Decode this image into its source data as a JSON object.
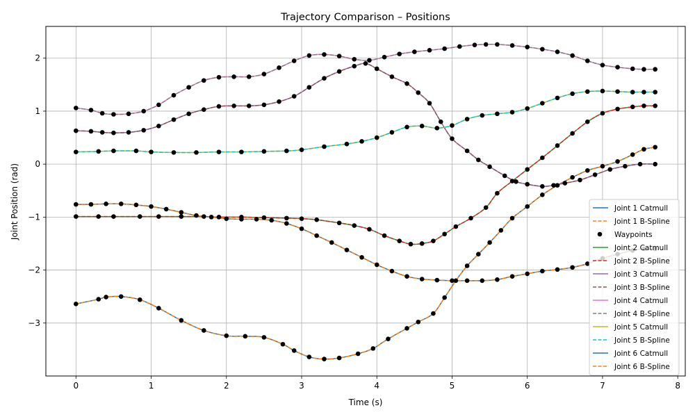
{
  "chart_data": {
    "type": "line",
    "title": "Trajectory Comparison – Positions",
    "xlabel": "Time (s)",
    "ylabel": "Joint Position (rad)",
    "xlim": [
      -0.4,
      8.1
    ],
    "ylim": [
      -4.0,
      2.6
    ],
    "xticks": [
      0,
      1,
      2,
      3,
      4,
      5,
      6,
      7,
      8
    ],
    "yticks": [
      -3,
      -2,
      -1,
      0,
      1,
      2
    ],
    "grid": true,
    "legend_position": "lower-right",
    "colors": {
      "Joint 1 Catmull": "#1f77b4",
      "Joint 1 B-Spline": "#ff7f0e",
      "Waypoints": "#000000",
      "Joint 2 Catmull": "#2ca02c",
      "Joint 2 B-Spline": "#d62728",
      "Joint 3 Catmull": "#9467bd",
      "Joint 3 B-Spline": "#8c564b",
      "Joint 4 Catmull": "#e377c2",
      "Joint 4 B-Spline": "#7f7f7f",
      "Joint 5 Catmull": "#bcbd22",
      "Joint 5 B-Spline": "#17becf",
      "Joint 6 Catmull": "#1f77b4",
      "Joint 6 B-Spline": "#ff7f0e"
    },
    "legend": [
      {
        "label": "Joint 1 Catmull",
        "style": "solid",
        "color": "#1f77b4"
      },
      {
        "label": "Joint 1 B-Spline",
        "style": "dashed",
        "color": "#ff7f0e"
      },
      {
        "label": "Waypoints",
        "style": "marker",
        "color": "#000000"
      },
      {
        "label": "Joint 2 Catmull",
        "style": "solid",
        "color": "#2ca02c"
      },
      {
        "label": "Joint 2 B-Spline",
        "style": "dashed",
        "color": "#d62728"
      },
      {
        "label": "Joint 3 Catmull",
        "style": "solid",
        "color": "#9467bd"
      },
      {
        "label": "Joint 3 B-Spline",
        "style": "dashed",
        "color": "#8c564b"
      },
      {
        "label": "Joint 4 Catmull",
        "style": "solid",
        "color": "#e377c2"
      },
      {
        "label": "Joint 4 B-Spline",
        "style": "dashed",
        "color": "#7f7f7f"
      },
      {
        "label": "Joint 5 Catmull",
        "style": "solid",
        "color": "#bcbd22"
      },
      {
        "label": "Joint 5 B-Spline",
        "style": "dashed",
        "color": "#17becf"
      },
      {
        "label": "Joint 6 Catmull",
        "style": "solid",
        "color": "#1f77b4"
      },
      {
        "label": "Joint 6 B-Spline",
        "style": "dashed",
        "color": "#ff7f0e"
      }
    ],
    "series": [
      {
        "joint": 1,
        "catmull_color": "#1f77b4",
        "bspline_color": "#ff7f0e",
        "points": [
          [
            0,
            -2.64
          ],
          [
            0.3,
            -2.55
          ],
          [
            0.4,
            -2.51
          ],
          [
            0.6,
            -2.5
          ],
          [
            0.85,
            -2.56
          ],
          [
            1.1,
            -2.72
          ],
          [
            1.4,
            -2.95
          ],
          [
            1.7,
            -3.14
          ],
          [
            2.0,
            -3.24
          ],
          [
            2.25,
            -3.25
          ],
          [
            2.5,
            -3.27
          ],
          [
            2.75,
            -3.4
          ],
          [
            2.9,
            -3.52
          ],
          [
            3.1,
            -3.64
          ],
          [
            3.3,
            -3.68
          ],
          [
            3.5,
            -3.66
          ],
          [
            3.75,
            -3.58
          ],
          [
            3.95,
            -3.48
          ],
          [
            4.15,
            -3.3
          ],
          [
            4.4,
            -3.1
          ],
          [
            4.55,
            -2.98
          ],
          [
            4.75,
            -2.82
          ],
          [
            4.9,
            -2.52
          ],
          [
            5.05,
            -2.2
          ],
          [
            5.2,
            -1.92
          ],
          [
            5.35,
            -1.7
          ],
          [
            5.5,
            -1.48
          ],
          [
            5.65,
            -1.25
          ],
          [
            5.8,
            -1.02
          ],
          [
            6.0,
            -0.8
          ],
          [
            6.2,
            -0.58
          ],
          [
            6.4,
            -0.4
          ],
          [
            6.6,
            -0.25
          ],
          [
            6.8,
            -0.12
          ],
          [
            7.0,
            -0.04
          ],
          [
            7.2,
            0.05
          ],
          [
            7.4,
            0.18
          ],
          [
            7.55,
            0.28
          ],
          [
            7.7,
            0.32
          ]
        ]
      },
      {
        "joint": 2,
        "catmull_color": "#2ca02c",
        "bspline_color": "#d62728",
        "points": [
          [
            0,
            -0.99
          ],
          [
            0.3,
            -0.99
          ],
          [
            0.5,
            -0.99
          ],
          [
            0.85,
            -0.99
          ],
          [
            1.1,
            -0.99
          ],
          [
            1.4,
            -0.99
          ],
          [
            1.7,
            -0.99
          ],
          [
            1.9,
            -1.0
          ],
          [
            2.2,
            -1.0
          ],
          [
            2.5,
            -1.01
          ],
          [
            2.8,
            -1.02
          ],
          [
            3.0,
            -1.03
          ],
          [
            3.2,
            -1.05
          ],
          [
            3.5,
            -1.11
          ],
          [
            3.7,
            -1.16
          ],
          [
            3.9,
            -1.23
          ],
          [
            4.1,
            -1.35
          ],
          [
            4.3,
            -1.45
          ],
          [
            4.45,
            -1.51
          ],
          [
            4.6,
            -1.5
          ],
          [
            4.75,
            -1.45
          ],
          [
            4.9,
            -1.32
          ],
          [
            5.05,
            -1.18
          ],
          [
            5.25,
            -1.02
          ],
          [
            5.45,
            -0.82
          ],
          [
            5.6,
            -0.55
          ],
          [
            5.8,
            -0.32
          ],
          [
            6.0,
            -0.1
          ],
          [
            6.2,
            0.12
          ],
          [
            6.4,
            0.35
          ],
          [
            6.6,
            0.58
          ],
          [
            6.8,
            0.8
          ],
          [
            7.0,
            0.96
          ],
          [
            7.2,
            1.04
          ],
          [
            7.4,
            1.08
          ],
          [
            7.55,
            1.1
          ],
          [
            7.7,
            1.1
          ]
        ]
      },
      {
        "joint": 3,
        "catmull_color": "#9467bd",
        "bspline_color": "#8c564b",
        "points": [
          [
            0,
            0.63
          ],
          [
            0.2,
            0.62
          ],
          [
            0.35,
            0.6
          ],
          [
            0.5,
            0.59
          ],
          [
            0.7,
            0.6
          ],
          [
            0.9,
            0.64
          ],
          [
            1.1,
            0.72
          ],
          [
            1.3,
            0.84
          ],
          [
            1.5,
            0.95
          ],
          [
            1.7,
            1.03
          ],
          [
            1.9,
            1.09
          ],
          [
            2.1,
            1.1
          ],
          [
            2.3,
            1.1
          ],
          [
            2.5,
            1.12
          ],
          [
            2.7,
            1.18
          ],
          [
            2.9,
            1.28
          ],
          [
            3.1,
            1.45
          ],
          [
            3.3,
            1.62
          ],
          [
            3.5,
            1.75
          ],
          [
            3.7,
            1.85
          ],
          [
            3.85,
            1.9
          ],
          [
            4.0,
            1.8
          ],
          [
            4.2,
            1.65
          ],
          [
            4.4,
            1.52
          ],
          [
            4.55,
            1.35
          ],
          [
            4.7,
            1.15
          ],
          [
            4.85,
            0.8
          ],
          [
            5.0,
            0.48
          ],
          [
            5.2,
            0.25
          ],
          [
            5.35,
            0.08
          ],
          [
            5.5,
            -0.05
          ],
          [
            5.7,
            -0.22
          ],
          [
            5.85,
            -0.33
          ],
          [
            6.0,
            -0.38
          ],
          [
            6.2,
            -0.42
          ],
          [
            6.35,
            -0.4
          ],
          [
            6.5,
            -0.36
          ],
          [
            6.7,
            -0.3
          ],
          [
            6.9,
            -0.2
          ],
          [
            7.1,
            -0.1
          ],
          [
            7.3,
            -0.04
          ],
          [
            7.5,
            0.0
          ],
          [
            7.7,
            0.0
          ]
        ]
      },
      {
        "joint": 4,
        "catmull_color": "#e377c2",
        "bspline_color": "#7f7f7f",
        "points": [
          [
            0,
            1.06
          ],
          [
            0.2,
            1.02
          ],
          [
            0.35,
            0.96
          ],
          [
            0.5,
            0.94
          ],
          [
            0.7,
            0.95
          ],
          [
            0.9,
            1.0
          ],
          [
            1.1,
            1.12
          ],
          [
            1.3,
            1.3
          ],
          [
            1.5,
            1.45
          ],
          [
            1.7,
            1.58
          ],
          [
            1.9,
            1.64
          ],
          [
            2.1,
            1.65
          ],
          [
            2.3,
            1.65
          ],
          [
            2.5,
            1.7
          ],
          [
            2.7,
            1.82
          ],
          [
            2.9,
            1.95
          ],
          [
            3.1,
            2.05
          ],
          [
            3.3,
            2.07
          ],
          [
            3.5,
            2.04
          ],
          [
            3.7,
            1.98
          ],
          [
            3.9,
            1.96
          ],
          [
            4.1,
            2.02
          ],
          [
            4.3,
            2.08
          ],
          [
            4.5,
            2.12
          ],
          [
            4.7,
            2.15
          ],
          [
            4.9,
            2.18
          ],
          [
            5.1,
            2.22
          ],
          [
            5.3,
            2.25
          ],
          [
            5.45,
            2.26
          ],
          [
            5.6,
            2.26
          ],
          [
            5.8,
            2.24
          ],
          [
            6.0,
            2.21
          ],
          [
            6.2,
            2.17
          ],
          [
            6.4,
            2.12
          ],
          [
            6.6,
            2.05
          ],
          [
            6.8,
            1.95
          ],
          [
            7.0,
            1.87
          ],
          [
            7.2,
            1.83
          ],
          [
            7.4,
            1.8
          ],
          [
            7.55,
            1.79
          ],
          [
            7.7,
            1.79
          ]
        ]
      },
      {
        "joint": 5,
        "catmull_color": "#bcbd22",
        "bspline_color": "#17becf",
        "points": [
          [
            0,
            0.23
          ],
          [
            0.3,
            0.24
          ],
          [
            0.5,
            0.25
          ],
          [
            0.8,
            0.25
          ],
          [
            1.0,
            0.23
          ],
          [
            1.3,
            0.22
          ],
          [
            1.6,
            0.22
          ],
          [
            1.9,
            0.23
          ],
          [
            2.2,
            0.23
          ],
          [
            2.5,
            0.24
          ],
          [
            2.8,
            0.25
          ],
          [
            3.0,
            0.27
          ],
          [
            3.3,
            0.33
          ],
          [
            3.6,
            0.38
          ],
          [
            3.8,
            0.43
          ],
          [
            4.0,
            0.5
          ],
          [
            4.2,
            0.6
          ],
          [
            4.4,
            0.7
          ],
          [
            4.6,
            0.72
          ],
          [
            4.8,
            0.68
          ],
          [
            5.0,
            0.73
          ],
          [
            5.2,
            0.85
          ],
          [
            5.4,
            0.92
          ],
          [
            5.6,
            0.95
          ],
          [
            5.8,
            0.98
          ],
          [
            6.0,
            1.05
          ],
          [
            6.2,
            1.15
          ],
          [
            6.4,
            1.25
          ],
          [
            6.6,
            1.33
          ],
          [
            6.8,
            1.37
          ],
          [
            7.0,
            1.38
          ],
          [
            7.2,
            1.37
          ],
          [
            7.4,
            1.36
          ],
          [
            7.55,
            1.36
          ],
          [
            7.7,
            1.36
          ]
        ]
      },
      {
        "joint": 6,
        "catmull_color": "#1f77b4",
        "bspline_color": "#ff7f0e",
        "points": [
          [
            0,
            -0.76
          ],
          [
            0.2,
            -0.76
          ],
          [
            0.4,
            -0.75
          ],
          [
            0.6,
            -0.75
          ],
          [
            0.8,
            -0.77
          ],
          [
            1.0,
            -0.8
          ],
          [
            1.2,
            -0.85
          ],
          [
            1.4,
            -0.91
          ],
          [
            1.6,
            -0.97
          ],
          [
            1.8,
            -1.0
          ],
          [
            2.0,
            -1.03
          ],
          [
            2.2,
            -1.04
          ],
          [
            2.4,
            -1.04
          ],
          [
            2.6,
            -1.06
          ],
          [
            2.8,
            -1.12
          ],
          [
            3.0,
            -1.22
          ],
          [
            3.2,
            -1.35
          ],
          [
            3.4,
            -1.48
          ],
          [
            3.6,
            -1.62
          ],
          [
            3.8,
            -1.76
          ],
          [
            4.0,
            -1.9
          ],
          [
            4.2,
            -2.02
          ],
          [
            4.4,
            -2.12
          ],
          [
            4.6,
            -2.17
          ],
          [
            4.8,
            -2.19
          ],
          [
            5.0,
            -2.2
          ],
          [
            5.2,
            -2.2
          ],
          [
            5.4,
            -2.2
          ],
          [
            5.6,
            -2.18
          ],
          [
            5.8,
            -2.12
          ],
          [
            6.0,
            -2.07
          ],
          [
            6.2,
            -2.02
          ],
          [
            6.4,
            -1.99
          ],
          [
            6.6,
            -1.95
          ],
          [
            6.8,
            -1.88
          ],
          [
            7.0,
            -1.78
          ],
          [
            7.2,
            -1.7
          ],
          [
            7.4,
            -1.63
          ],
          [
            7.55,
            -1.6
          ],
          [
            7.7,
            -1.6
          ]
        ]
      }
    ]
  }
}
